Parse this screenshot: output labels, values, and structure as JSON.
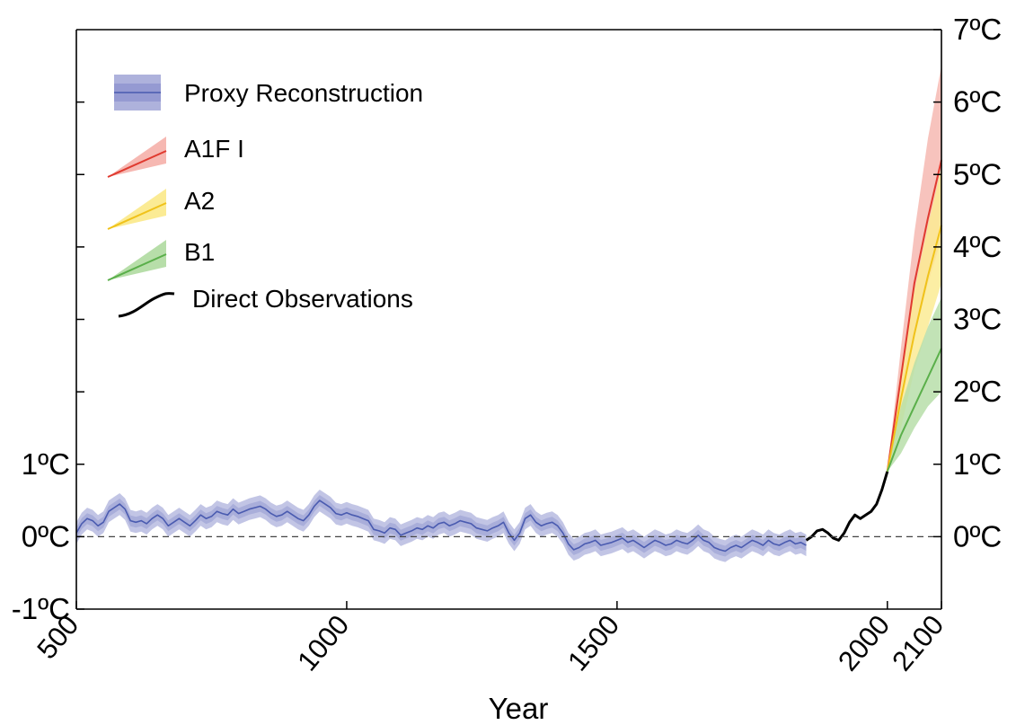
{
  "chart_data": {
    "type": "line",
    "title": "",
    "xlabel": "Year",
    "ylabel": "",
    "xlim": [
      500,
      2100
    ],
    "ylim": [
      -1,
      7
    ],
    "x_ticks": [
      {
        "value": 500,
        "label": "500"
      },
      {
        "value": 1000,
        "label": "1000"
      },
      {
        "value": 1500,
        "label": "1500"
      },
      {
        "value": 2000,
        "label": "2000"
      },
      {
        "value": 2100,
        "label": "2100"
      }
    ],
    "y_ticks_left": [
      {
        "value": 1,
        "label": "1ºC"
      },
      {
        "value": 0,
        "label": "0ºC"
      },
      {
        "value": -1,
        "label": "-1ºC"
      }
    ],
    "y_ticks_right": [
      {
        "value": 7,
        "label": "7ºC"
      },
      {
        "value": 6,
        "label": "6ºC"
      },
      {
        "value": 5,
        "label": "5ºC"
      },
      {
        "value": 4,
        "label": "4ºC"
      },
      {
        "value": 3,
        "label": "3ºC"
      },
      {
        "value": 2,
        "label": "2ºC"
      },
      {
        "value": 1,
        "label": "1ºC"
      },
      {
        "value": 0,
        "label": "0ºC"
      }
    ],
    "left_minor_ticks": [
      2,
      3,
      4,
      5,
      6
    ],
    "zero_line": {
      "value": 0,
      "style": "dashed"
    },
    "grid": false,
    "legend_position": "top-left",
    "legend": [
      {
        "label": "Proxy Reconstruction",
        "kind": "band"
      },
      {
        "label": "A1F I",
        "kind": "wedge",
        "color": "#e03a2f",
        "band_color": "#f6b8b2"
      },
      {
        "label": "A2",
        "kind": "wedge",
        "color": "#f0c21a",
        "band_color": "#fbeb94"
      },
      {
        "label": "B1",
        "kind": "wedge",
        "color": "#5aaf4a",
        "band_color": "#b7dea9"
      },
      {
        "label": "Direct Observations",
        "kind": "line",
        "color": "#000000"
      }
    ],
    "series": [
      {
        "name": "Proxy Reconstruction",
        "color": "#4a5bb0",
        "band_color": "#aeb2dc",
        "band_halfwidth": 0.15,
        "x": [
          500,
          510,
          520,
          530,
          540,
          550,
          560,
          570,
          580,
          590,
          600,
          610,
          620,
          630,
          640,
          650,
          660,
          670,
          680,
          690,
          700,
          710,
          720,
          730,
          740,
          750,
          760,
          770,
          780,
          790,
          800,
          810,
          820,
          830,
          840,
          850,
          860,
          870,
          880,
          890,
          900,
          910,
          920,
          930,
          940,
          950,
          960,
          970,
          980,
          990,
          1000,
          1010,
          1020,
          1030,
          1040,
          1050,
          1060,
          1070,
          1080,
          1090,
          1100,
          1110,
          1120,
          1130,
          1140,
          1150,
          1160,
          1170,
          1180,
          1190,
          1200,
          1210,
          1220,
          1230,
          1240,
          1250,
          1260,
          1270,
          1280,
          1290,
          1300,
          1310,
          1320,
          1330,
          1340,
          1350,
          1360,
          1370,
          1380,
          1390,
          1400,
          1410,
          1420,
          1430,
          1440,
          1450,
          1460,
          1470,
          1480,
          1490,
          1500,
          1510,
          1520,
          1530,
          1540,
          1550,
          1560,
          1570,
          1580,
          1590,
          1600,
          1610,
          1620,
          1630,
          1640,
          1650,
          1660,
          1670,
          1680,
          1690,
          1700,
          1710,
          1720,
          1730,
          1740,
          1750,
          1760,
          1770,
          1780,
          1790,
          1800,
          1810,
          1820,
          1830,
          1840,
          1850
        ],
        "y": [
          0.05,
          0.18,
          0.25,
          0.22,
          0.15,
          0.2,
          0.35,
          0.4,
          0.45,
          0.38,
          0.22,
          0.2,
          0.22,
          0.18,
          0.25,
          0.3,
          0.25,
          0.15,
          0.2,
          0.25,
          0.2,
          0.15,
          0.22,
          0.3,
          0.25,
          0.28,
          0.35,
          0.32,
          0.3,
          0.38,
          0.32,
          0.35,
          0.38,
          0.4,
          0.42,
          0.38,
          0.32,
          0.28,
          0.3,
          0.35,
          0.3,
          0.25,
          0.22,
          0.3,
          0.42,
          0.5,
          0.45,
          0.4,
          0.32,
          0.3,
          0.33,
          0.3,
          0.28,
          0.25,
          0.22,
          0.1,
          0.08,
          0.05,
          0.12,
          0.1,
          0.02,
          0.05,
          0.08,
          0.12,
          0.1,
          0.15,
          0.12,
          0.18,
          0.2,
          0.15,
          0.18,
          0.22,
          0.2,
          0.18,
          0.12,
          0.1,
          0.08,
          0.12,
          0.15,
          0.2,
          0.05,
          -0.05,
          0.05,
          0.25,
          0.3,
          0.2,
          0.15,
          0.18,
          0.2,
          0.15,
          0.05,
          -0.1,
          -0.18,
          -0.15,
          -0.1,
          -0.08,
          -0.05,
          -0.12,
          -0.1,
          -0.08,
          -0.05,
          -0.02,
          -0.08,
          -0.05,
          -0.1,
          -0.15,
          -0.1,
          -0.05,
          -0.08,
          -0.12,
          -0.1,
          -0.05,
          -0.08,
          -0.1,
          -0.05,
          0.02,
          -0.05,
          -0.08,
          -0.15,
          -0.18,
          -0.2,
          -0.15,
          -0.12,
          -0.15,
          -0.1,
          -0.05,
          -0.08,
          -0.12,
          -0.05,
          -0.1,
          -0.12,
          -0.08,
          -0.05,
          -0.1,
          -0.08,
          -0.12
        ]
      },
      {
        "name": "Direct Observations",
        "color": "#000000",
        "x": [
          1850,
          1860,
          1870,
          1880,
          1890,
          1900,
          1910,
          1920,
          1930,
          1940,
          1950,
          1960,
          1970,
          1980,
          1990,
          2000
        ],
        "y": [
          -0.05,
          0.0,
          0.08,
          0.1,
          0.05,
          -0.02,
          -0.05,
          0.05,
          0.2,
          0.3,
          0.25,
          0.3,
          0.35,
          0.45,
          0.65,
          0.9
        ]
      },
      {
        "name": "A1F I",
        "color": "#e03a2f",
        "band_color": "#f6b8b2",
        "x": [
          2000,
          2025,
          2050,
          2075,
          2100
        ],
        "y": [
          0.9,
          2.2,
          3.5,
          4.4,
          5.2
        ],
        "y_low": [
          0.9,
          1.8,
          2.8,
          3.5,
          4.1
        ],
        "y_high": [
          0.9,
          2.6,
          4.2,
          5.5,
          6.5
        ]
      },
      {
        "name": "A2",
        "color": "#f0c21a",
        "band_color": "#fbeb94",
        "x": [
          2000,
          2025,
          2050,
          2075,
          2100
        ],
        "y": [
          0.9,
          1.9,
          2.8,
          3.6,
          4.3
        ],
        "y_low": [
          0.9,
          1.5,
          2.3,
          2.9,
          3.5
        ],
        "y_high": [
          0.9,
          2.3,
          3.4,
          4.3,
          5.1
        ]
      },
      {
        "name": "B1",
        "color": "#5aaf4a",
        "band_color": "#b7dea9",
        "x": [
          2000,
          2025,
          2050,
          2075,
          2100
        ],
        "y": [
          0.9,
          1.4,
          1.8,
          2.2,
          2.6
        ],
        "y_low": [
          0.9,
          1.15,
          1.5,
          1.8,
          2.0
        ],
        "y_high": [
          0.9,
          1.8,
          2.4,
          2.9,
          3.3
        ]
      }
    ]
  }
}
